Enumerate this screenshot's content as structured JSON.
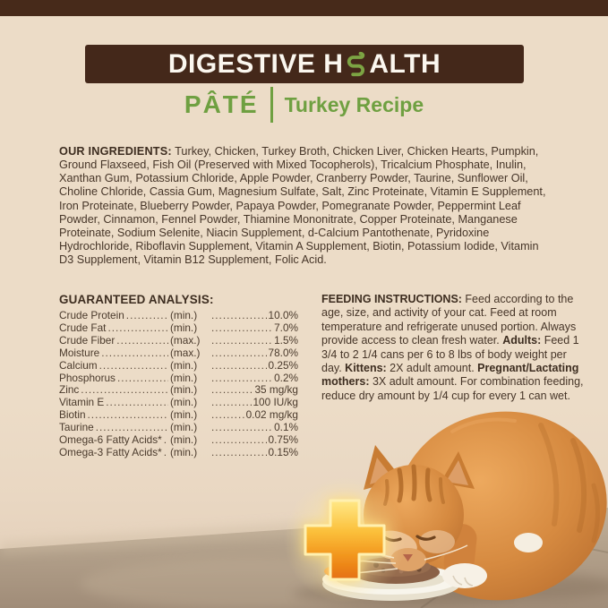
{
  "colors": {
    "background": "#ecdcc7",
    "banner_brown": "#44281a",
    "accent_green": "#6fa041",
    "body_text": "#463528",
    "cross_orange": "#f29a1f"
  },
  "header": {
    "title_left": "DIGESTIVE H",
    "title_right": "ALTH"
  },
  "subheader": {
    "format": "PÂTÉ",
    "recipe": "Turkey Recipe"
  },
  "ingredients": {
    "label": "OUR INGREDIENTS:",
    "text": " Turkey, Chicken, Turkey Broth, Chicken Liver, Chicken Hearts, Pumpkin, Ground Flaxseed, Fish Oil (Preserved with Mixed Tocopherols), Tricalcium Phosphate, Inulin, Xanthan Gum, Potassium Chloride, Apple Powder, Cranberry Powder, Taurine, Sunflower Oil, Choline Chloride, Cassia Gum, Magnesium Sulfate, Salt, Zinc Proteinate, Vitamin E Supplement, Iron Proteinate, Blueberry Powder, Papaya Powder, Pomegranate Powder, Peppermint Leaf Powder, Cinnamon, Fennel Powder, Thiamine Mononitrate, Copper Proteinate, Manganese Proteinate, Sodium Selenite, Niacin Supplement, d-Calcium Pantothenate, Pyridoxine Hydrochloride, Riboflavin Supplement, Vitamin A Supplement, Biotin, Potassium Iodide, Vitamin D3 Supplement, Vitamin B12 Supplement, Folic Acid."
  },
  "analysis": {
    "title": "GUARANTEED ANALYSIS:",
    "rows": [
      {
        "name": "Crude Protein",
        "qualifier": "(min.)",
        "value": "10.0%"
      },
      {
        "name": "Crude Fat",
        "qualifier": "(min.)",
        "value": "7.0%"
      },
      {
        "name": "Crude Fiber",
        "qualifier": "(max.)",
        "value": "1.5%"
      },
      {
        "name": "Moisture",
        "qualifier": "(max.)",
        "value": "78.0%"
      },
      {
        "name": "Calcium",
        "qualifier": "(min.)",
        "value": "0.25%"
      },
      {
        "name": "Phosphorus",
        "qualifier": "(min.)",
        "value": "0.2%"
      },
      {
        "name": "Zinc",
        "qualifier": "(min.)",
        "value": "35 mg/kg"
      },
      {
        "name": "Vitamin E",
        "qualifier": "(min.)",
        "value": "100 IU/kg"
      },
      {
        "name": "Biotin",
        "qualifier": "(min.)",
        "value": "0.02 mg/kg"
      },
      {
        "name": "Taurine",
        "qualifier": "(min.)",
        "value": "0.1%"
      },
      {
        "name": "Omega-6 Fatty Acids*",
        "qualifier": "(min.)",
        "value": "0.75%"
      },
      {
        "name": "Omega-3 Fatty Acids*",
        "qualifier": "(min.)",
        "value": "0.15%"
      }
    ]
  },
  "feeding": {
    "segments": [
      {
        "text": "FEEDING INSTRUCTIONS: ",
        "bold": true
      },
      {
        "text": "Feed according to the age, size, and activity of your cat. Feed at room temperature and refrigerate unused portion. Always provide access to clean fresh water. ",
        "bold": false
      },
      {
        "text": "Adults: ",
        "bold": true
      },
      {
        "text": "Feed 1 3/4 to 2 1/4 cans per 6 to 8 lbs of body weight per day. ",
        "bold": false
      },
      {
        "text": "Kittens: ",
        "bold": true
      },
      {
        "text": "2X adult amount. ",
        "bold": false
      },
      {
        "text": "Pregnant/Lactating mothers: ",
        "bold": true
      },
      {
        "text": "3X adult amount. For combination feeding, reduce dry amount by 1/4 cup for every 1 can wet.",
        "bold": false
      }
    ]
  },
  "photo": {
    "description": "Orange tabby cat eating pâté from a white plate on a tiled floor"
  },
  "icons": {
    "intestine": "intestine-icon",
    "plus": "plus-icon"
  }
}
